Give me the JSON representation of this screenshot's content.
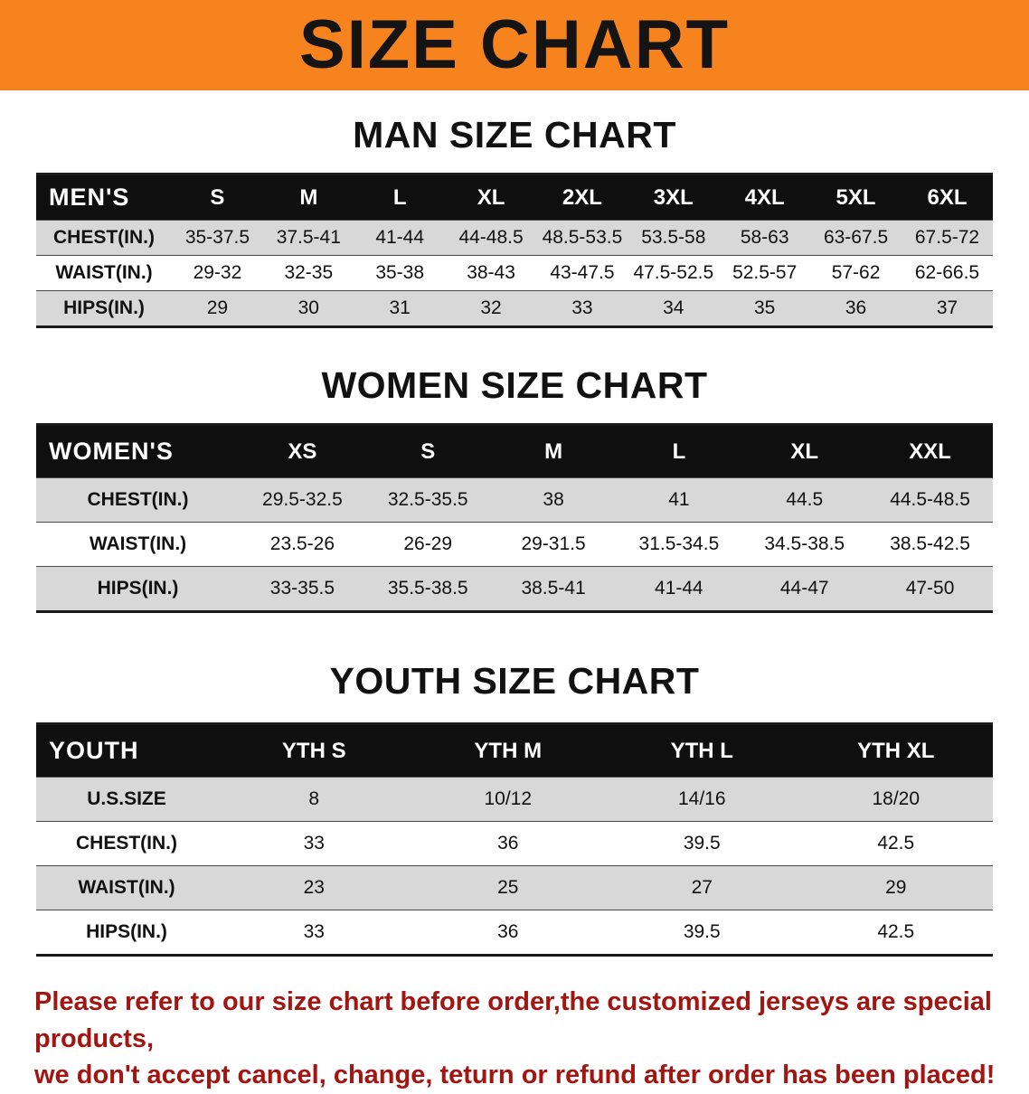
{
  "banner": {
    "title": "SIZE CHART",
    "bg_color": "#F6831E"
  },
  "chart_data": [
    {
      "type": "table",
      "title": "MAN SIZE CHART",
      "label": "MEN'S",
      "columns": [
        "S",
        "M",
        "L",
        "XL",
        "2XL",
        "3XL",
        "4XL",
        "5XL",
        "6XL"
      ],
      "rows": [
        {
          "label": "CHEST(IN.)",
          "values": [
            "35-37.5",
            "37.5-41",
            "41-44",
            "44-48.5",
            "48.5-53.5",
            "53.5-58",
            "58-63",
            "63-67.5",
            "67.5-72"
          ]
        },
        {
          "label": "WAIST(IN.)",
          "values": [
            "29-32",
            "32-35",
            "35-38",
            "38-43",
            "43-47.5",
            "47.5-52.5",
            "52.5-57",
            "57-62",
            "62-66.5"
          ]
        },
        {
          "label": "HIPS(IN.)",
          "values": [
            "29",
            "30",
            "31",
            "32",
            "33",
            "34",
            "35",
            "36",
            "37"
          ]
        }
      ]
    },
    {
      "type": "table",
      "title": "WOMEN SIZE CHART",
      "label": "WOMEN'S",
      "columns": [
        "XS",
        "S",
        "M",
        "L",
        "XL",
        "XXL"
      ],
      "rows": [
        {
          "label": "CHEST(IN.)",
          "values": [
            "29.5-32.5",
            "32.5-35.5",
            "38",
            "41",
            "44.5",
            "44.5-48.5"
          ]
        },
        {
          "label": "WAIST(IN.)",
          "values": [
            "23.5-26",
            "26-29",
            "29-31.5",
            "31.5-34.5",
            "34.5-38.5",
            "38.5-42.5"
          ]
        },
        {
          "label": "HIPS(IN.)",
          "values": [
            "33-35.5",
            "35.5-38.5",
            "38.5-41",
            "41-44",
            "44-47",
            "47-50"
          ]
        }
      ]
    },
    {
      "type": "table",
      "title": "YOUTH SIZE CHART",
      "label": "YOUTH",
      "columns": [
        "YTH S",
        "YTH M",
        "YTH L",
        "YTH XL"
      ],
      "rows": [
        {
          "label": "U.S.SIZE",
          "values": [
            "8",
            "10/12",
            "14/16",
            "18/20"
          ]
        },
        {
          "label": "CHEST(IN.)",
          "values": [
            "33",
            "36",
            "39.5",
            "42.5"
          ]
        },
        {
          "label": "WAIST(IN.)",
          "values": [
            "23",
            "25",
            "27",
            "29"
          ]
        },
        {
          "label": "HIPS(IN.)",
          "values": [
            "33",
            "36",
            "39.5",
            "42.5"
          ]
        }
      ]
    }
  ],
  "footer": {
    "line1": "Please refer to our size chart before order,the customized jerseys are special products,",
    "line2": "we don't accept cancel, change, teturn or refund after order has been placed!"
  }
}
